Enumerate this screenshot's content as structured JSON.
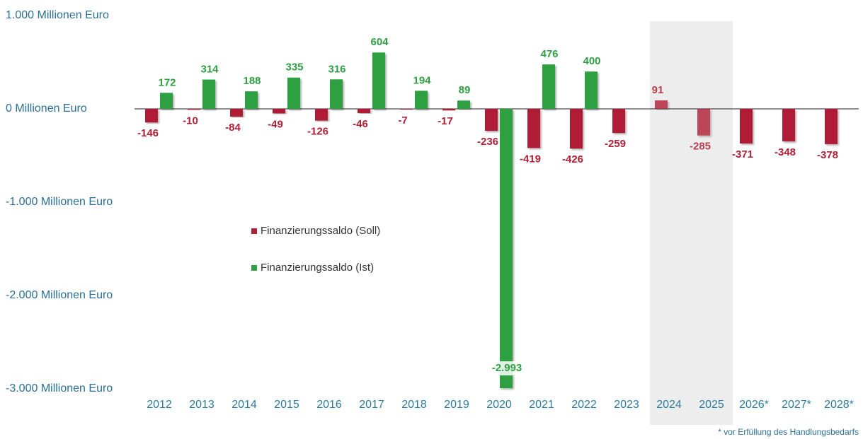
{
  "chart_data": {
    "type": "bar",
    "categories": [
      "2012",
      "2013",
      "2014",
      "2015",
      "2016",
      "2017",
      "2018",
      "2019",
      "2020",
      "2021",
      "2022",
      "2023",
      "2024",
      "2025",
      "2026*",
      "2027*",
      "2028*"
    ],
    "series": [
      {
        "name": "Finanzierungssaldo (Soll)",
        "color": "#b01f35",
        "values": [
          -146,
          -10,
          -84,
          -49,
          -126,
          -46,
          -7,
          -17,
          -236,
          -419,
          -426,
          -259,
          91,
          -285,
          -371,
          -348,
          -378
        ]
      },
      {
        "name": "Finanzierungssaldo (Ist)",
        "color": "#2ea043",
        "values": [
          172,
          314,
          188,
          335,
          316,
          604,
          194,
          89,
          -2993,
          476,
          400,
          null,
          null,
          null,
          null,
          null,
          null
        ],
        "value_labels": [
          "172",
          "314",
          "188",
          "335",
          "316",
          "604",
          "194",
          "89",
          "-2.993",
          "476",
          "400",
          null,
          null,
          null,
          null,
          null,
          null
        ]
      }
    ],
    "ylim": [
      -3000,
      1000
    ],
    "yticks": [
      {
        "value": 1000,
        "label": "1.000 Millionen Euro"
      },
      {
        "value": 0,
        "label": "0 Millionen Euro"
      },
      {
        "value": -1000,
        "label": "-1.000 Millionen Euro"
      },
      {
        "value": -2000,
        "label": "-2.000 Millionen Euro"
      },
      {
        "value": -3000,
        "label": "-3.000 Millionen Euro"
      }
    ],
    "legend": "center-left",
    "footnote": "* vor Erfüllung des Handlungsbedarfs"
  }
}
